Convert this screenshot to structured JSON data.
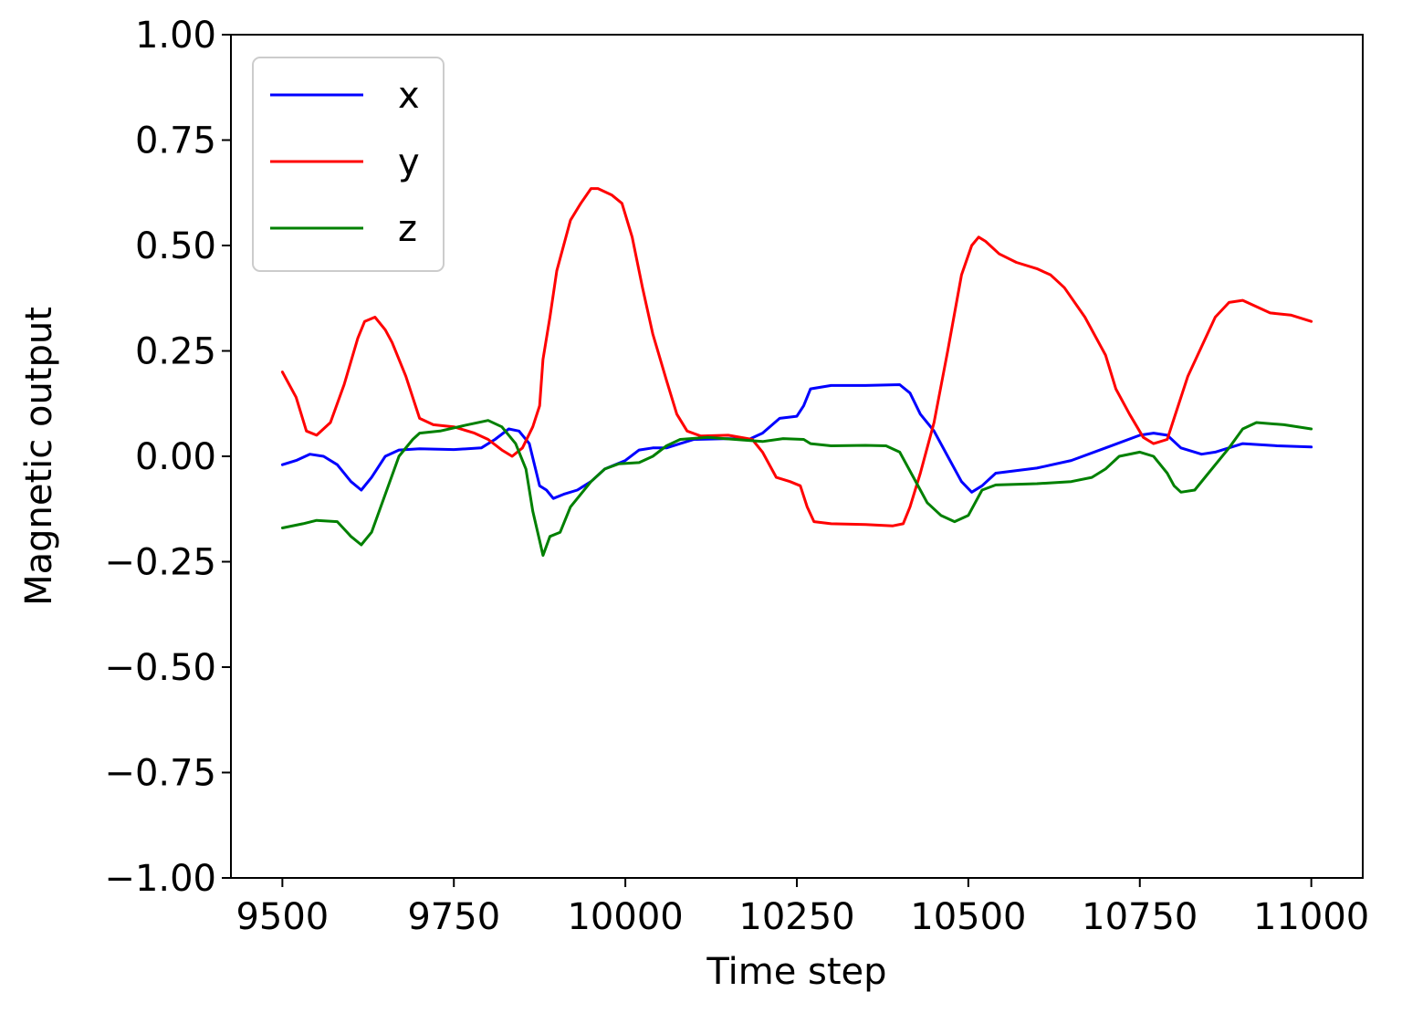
{
  "chart_data": {
    "type": "line",
    "title": "",
    "xlabel": "Time step",
    "ylabel": "Magnetic output",
    "xlim": [
      9425,
      11075
    ],
    "ylim": [
      -1.0,
      1.0
    ],
    "xticks": [
      9500,
      9750,
      10000,
      10250,
      10500,
      10750,
      11000
    ],
    "xtick_labels": [
      "9500",
      "9750",
      "10000",
      "10250",
      "10500",
      "10750",
      "11000"
    ],
    "yticks": [
      -1.0,
      -0.75,
      -0.5,
      -0.25,
      0.0,
      0.25,
      0.5,
      0.75,
      1.0
    ],
    "ytick_labels": [
      "−1.00",
      "−0.75",
      "−0.50",
      "−0.25",
      "0.00",
      "0.25",
      "0.50",
      "0.75",
      "1.00"
    ],
    "grid": false,
    "legend_position": "top-left",
    "series": [
      {
        "name": "x",
        "color": "#0000ff",
        "points": [
          [
            9500,
            -0.02
          ],
          [
            9520,
            -0.01
          ],
          [
            9540,
            0.005
          ],
          [
            9560,
            0.0
          ],
          [
            9580,
            -0.02
          ],
          [
            9600,
            -0.06
          ],
          [
            9615,
            -0.08
          ],
          [
            9630,
            -0.05
          ],
          [
            9650,
            0.0
          ],
          [
            9670,
            0.015
          ],
          [
            9700,
            0.018
          ],
          [
            9750,
            0.016
          ],
          [
            9790,
            0.02
          ],
          [
            9810,
            0.04
          ],
          [
            9830,
            0.065
          ],
          [
            9845,
            0.06
          ],
          [
            9860,
            0.03
          ],
          [
            9875,
            -0.07
          ],
          [
            9885,
            -0.08
          ],
          [
            9895,
            -0.1
          ],
          [
            9910,
            -0.09
          ],
          [
            9930,
            -0.08
          ],
          [
            9950,
            -0.06
          ],
          [
            9970,
            -0.03
          ],
          [
            10000,
            -0.01
          ],
          [
            10020,
            0.015
          ],
          [
            10040,
            0.02
          ],
          [
            10060,
            0.02
          ],
          [
            10080,
            0.03
          ],
          [
            10100,
            0.04
          ],
          [
            10150,
            0.042
          ],
          [
            10180,
            0.04
          ],
          [
            10200,
            0.055
          ],
          [
            10225,
            0.09
          ],
          [
            10250,
            0.095
          ],
          [
            10260,
            0.12
          ],
          [
            10270,
            0.16
          ],
          [
            10300,
            0.168
          ],
          [
            10350,
            0.168
          ],
          [
            10400,
            0.17
          ],
          [
            10415,
            0.15
          ],
          [
            10430,
            0.1
          ],
          [
            10450,
            0.06
          ],
          [
            10470,
            0.0
          ],
          [
            10490,
            -0.06
          ],
          [
            10505,
            -0.085
          ],
          [
            10520,
            -0.07
          ],
          [
            10540,
            -0.04
          ],
          [
            10600,
            -0.028
          ],
          [
            10650,
            -0.01
          ],
          [
            10700,
            0.02
          ],
          [
            10750,
            0.05
          ],
          [
            10770,
            0.055
          ],
          [
            10790,
            0.05
          ],
          [
            10810,
            0.02
          ],
          [
            10840,
            0.005
          ],
          [
            10860,
            0.01
          ],
          [
            10900,
            0.03
          ],
          [
            10950,
            0.025
          ],
          [
            11000,
            0.022
          ]
        ]
      },
      {
        "name": "y",
        "color": "#ff0000",
        "points": [
          [
            9500,
            0.2
          ],
          [
            9520,
            0.14
          ],
          [
            9535,
            0.06
          ],
          [
            9550,
            0.05
          ],
          [
            9570,
            0.08
          ],
          [
            9590,
            0.17
          ],
          [
            9610,
            0.28
          ],
          [
            9620,
            0.32
          ],
          [
            9635,
            0.33
          ],
          [
            9650,
            0.3
          ],
          [
            9660,
            0.27
          ],
          [
            9680,
            0.19
          ],
          [
            9700,
            0.09
          ],
          [
            9720,
            0.075
          ],
          [
            9750,
            0.07
          ],
          [
            9780,
            0.055
          ],
          [
            9800,
            0.04
          ],
          [
            9820,
            0.015
          ],
          [
            9835,
            0.0
          ],
          [
            9850,
            0.02
          ],
          [
            9865,
            0.07
          ],
          [
            9875,
            0.12
          ],
          [
            9880,
            0.23
          ],
          [
            9890,
            0.33
          ],
          [
            9900,
            0.44
          ],
          [
            9920,
            0.56
          ],
          [
            9935,
            0.6
          ],
          [
            9950,
            0.635
          ],
          [
            9960,
            0.635
          ],
          [
            9980,
            0.62
          ],
          [
            9995,
            0.6
          ],
          [
            10010,
            0.52
          ],
          [
            10025,
            0.4
          ],
          [
            10040,
            0.29
          ],
          [
            10060,
            0.18
          ],
          [
            10075,
            0.1
          ],
          [
            10090,
            0.06
          ],
          [
            10110,
            0.048
          ],
          [
            10150,
            0.05
          ],
          [
            10185,
            0.04
          ],
          [
            10200,
            0.01
          ],
          [
            10220,
            -0.05
          ],
          [
            10240,
            -0.06
          ],
          [
            10255,
            -0.07
          ],
          [
            10265,
            -0.12
          ],
          [
            10275,
            -0.155
          ],
          [
            10300,
            -0.16
          ],
          [
            10350,
            -0.162
          ],
          [
            10390,
            -0.165
          ],
          [
            10405,
            -0.16
          ],
          [
            10415,
            -0.12
          ],
          [
            10430,
            -0.04
          ],
          [
            10450,
            0.08
          ],
          [
            10470,
            0.25
          ],
          [
            10490,
            0.43
          ],
          [
            10505,
            0.5
          ],
          [
            10515,
            0.52
          ],
          [
            10525,
            0.51
          ],
          [
            10545,
            0.48
          ],
          [
            10570,
            0.46
          ],
          [
            10600,
            0.445
          ],
          [
            10620,
            0.43
          ],
          [
            10640,
            0.4
          ],
          [
            10670,
            0.33
          ],
          [
            10700,
            0.24
          ],
          [
            10715,
            0.16
          ],
          [
            10735,
            0.1
          ],
          [
            10755,
            0.045
          ],
          [
            10770,
            0.03
          ],
          [
            10790,
            0.04
          ],
          [
            10800,
            0.09
          ],
          [
            10820,
            0.19
          ],
          [
            10840,
            0.26
          ],
          [
            10860,
            0.33
          ],
          [
            10880,
            0.365
          ],
          [
            10900,
            0.37
          ],
          [
            10920,
            0.355
          ],
          [
            10940,
            0.34
          ],
          [
            10970,
            0.335
          ],
          [
            11000,
            0.32
          ]
        ]
      },
      {
        "name": "z",
        "color": "#008000",
        "points": [
          [
            9500,
            -0.17
          ],
          [
            9530,
            -0.16
          ],
          [
            9550,
            -0.152
          ],
          [
            9580,
            -0.155
          ],
          [
            9600,
            -0.19
          ],
          [
            9615,
            -0.21
          ],
          [
            9630,
            -0.18
          ],
          [
            9650,
            -0.09
          ],
          [
            9670,
            0.0
          ],
          [
            9690,
            0.04
          ],
          [
            9700,
            0.055
          ],
          [
            9730,
            0.06
          ],
          [
            9770,
            0.075
          ],
          [
            9800,
            0.085
          ],
          [
            9820,
            0.07
          ],
          [
            9840,
            0.03
          ],
          [
            9855,
            -0.03
          ],
          [
            9865,
            -0.13
          ],
          [
            9875,
            -0.2
          ],
          [
            9880,
            -0.235
          ],
          [
            9890,
            -0.19
          ],
          [
            9905,
            -0.18
          ],
          [
            9920,
            -0.12
          ],
          [
            9950,
            -0.06
          ],
          [
            9970,
            -0.03
          ],
          [
            9990,
            -0.018
          ],
          [
            10020,
            -0.015
          ],
          [
            10040,
            0.0
          ],
          [
            10060,
            0.025
          ],
          [
            10080,
            0.04
          ],
          [
            10120,
            0.045
          ],
          [
            10160,
            0.04
          ],
          [
            10200,
            0.035
          ],
          [
            10230,
            0.042
          ],
          [
            10260,
            0.04
          ],
          [
            10270,
            0.03
          ],
          [
            10300,
            0.025
          ],
          [
            10350,
            0.026
          ],
          [
            10380,
            0.025
          ],
          [
            10400,
            0.01
          ],
          [
            10420,
            -0.05
          ],
          [
            10440,
            -0.11
          ],
          [
            10460,
            -0.14
          ],
          [
            10480,
            -0.155
          ],
          [
            10500,
            -0.14
          ],
          [
            10520,
            -0.08
          ],
          [
            10540,
            -0.068
          ],
          [
            10600,
            -0.065
          ],
          [
            10650,
            -0.06
          ],
          [
            10680,
            -0.05
          ],
          [
            10700,
            -0.03
          ],
          [
            10720,
            0.0
          ],
          [
            10750,
            0.01
          ],
          [
            10770,
            0.0
          ],
          [
            10790,
            -0.04
          ],
          [
            10800,
            -0.07
          ],
          [
            10810,
            -0.085
          ],
          [
            10830,
            -0.08
          ],
          [
            10850,
            -0.04
          ],
          [
            10880,
            0.02
          ],
          [
            10900,
            0.065
          ],
          [
            10920,
            0.08
          ],
          [
            10960,
            0.075
          ],
          [
            11000,
            0.065
          ]
        ]
      }
    ]
  }
}
